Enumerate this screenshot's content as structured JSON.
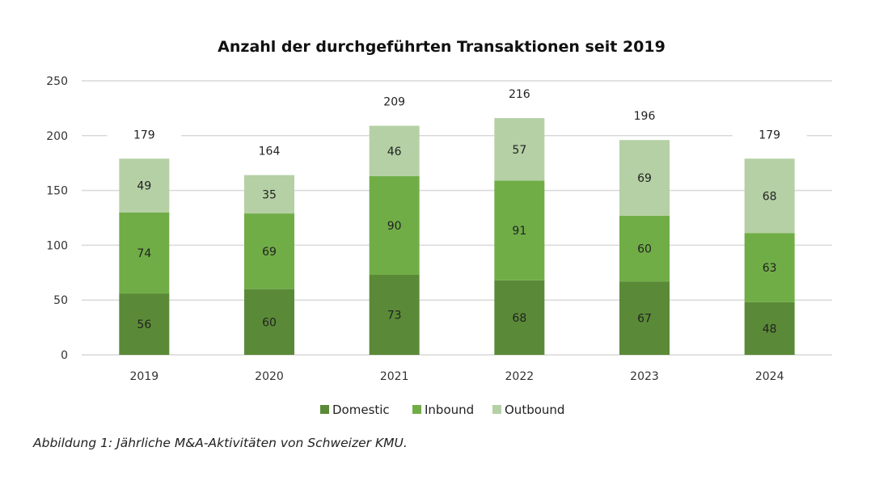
{
  "chart_data": {
    "type": "bar",
    "stacked": true,
    "title": "Anzahl der durchgeführten Transaktionen seit 2019",
    "xlabel": "",
    "ylabel": "",
    "categories": [
      "2019",
      "2020",
      "2021",
      "2022",
      "2023",
      "2024"
    ],
    "series": [
      {
        "name": "Domestic",
        "color": "#5a8a37",
        "values": [
          56,
          60,
          73,
          68,
          67,
          48
        ]
      },
      {
        "name": "Inbound",
        "color": "#70ad47",
        "values": [
          74,
          69,
          90,
          91,
          60,
          63
        ]
      },
      {
        "name": "Outbound",
        "color": "#b5d0a5",
        "values": [
          49,
          35,
          46,
          57,
          69,
          68
        ]
      }
    ],
    "totals": [
      179,
      164,
      209,
      216,
      196,
      179
    ],
    "ylim": [
      0,
      250
    ],
    "yticks": [
      0,
      50,
      100,
      150,
      200,
      250
    ],
    "grid": true,
    "legend": {
      "position": "bottom",
      "entries": [
        "Domestic",
        "Inbound",
        "Outbound"
      ]
    }
  },
  "caption": "Abbildung 1: Jährliche M&A-Aktivitäten von Schweizer KMU."
}
